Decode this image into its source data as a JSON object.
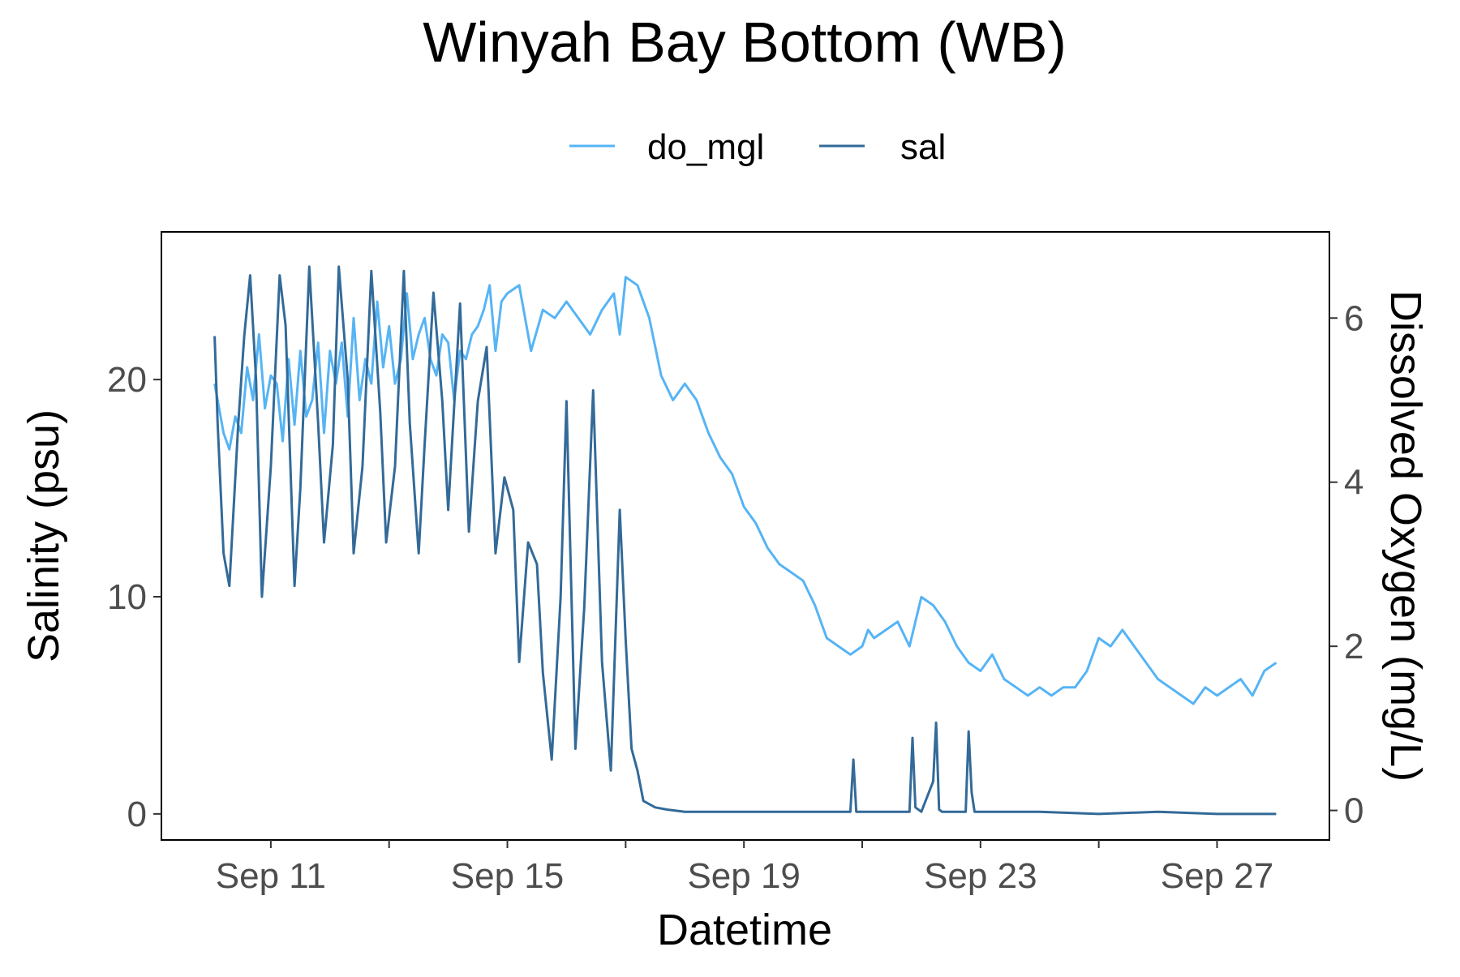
{
  "chart_data": {
    "type": "line",
    "title": "Winyah Bay Bottom (WB)",
    "xlabel": "Datetime",
    "ylabel_left": "Salinity (psu)",
    "ylabel_right": "Dissolved Oxygen (mg/L)",
    "x_ticks": [
      {
        "day": 11,
        "label": "Sep 11"
      },
      {
        "day": 15,
        "label": "Sep 15"
      },
      {
        "day": 19,
        "label": "Sep 19"
      },
      {
        "day": 23,
        "label": "Sep 23"
      },
      {
        "day": 27,
        "label": "Sep 27"
      }
    ],
    "x_minor_ticks": [
      13,
      17,
      21,
      25
    ],
    "xlim": [
      9.15,
      28.9
    ],
    "ylim_left": [
      -1.2,
      26.8
    ],
    "ylim_right": [
      -0.36,
      7.05
    ],
    "y_left_ticks": [
      0,
      10,
      20
    ],
    "y_right_ticks": [
      0,
      2,
      4,
      6
    ],
    "grid": false,
    "legend_position": "top",
    "series": [
      {
        "name": "do_mgl",
        "axis": "right",
        "color": "#56B4F5",
        "x": [
          10.05,
          10.1,
          10.2,
          10.3,
          10.4,
          10.5,
          10.6,
          10.7,
          10.8,
          10.9,
          11.0,
          11.1,
          11.2,
          11.3,
          11.4,
          11.5,
          11.6,
          11.7,
          11.8,
          11.9,
          12.0,
          12.1,
          12.2,
          12.3,
          12.4,
          12.5,
          12.6,
          12.7,
          12.8,
          12.9,
          13.0,
          13.1,
          13.2,
          13.3,
          13.4,
          13.5,
          13.6,
          13.7,
          13.8,
          13.9,
          14.0,
          14.1,
          14.2,
          14.3,
          14.4,
          14.5,
          14.6,
          14.7,
          14.8,
          14.9,
          15.0,
          15.2,
          15.4,
          15.6,
          15.8,
          16.0,
          16.2,
          16.4,
          16.6,
          16.8,
          16.9,
          17.0,
          17.2,
          17.4,
          17.6,
          17.8,
          18.0,
          18.2,
          18.4,
          18.6,
          18.8,
          19.0,
          19.2,
          19.4,
          19.6,
          19.8,
          20.0,
          20.2,
          20.4,
          20.6,
          20.8,
          21.0,
          21.1,
          21.2,
          21.4,
          21.6,
          21.8,
          22.0,
          22.2,
          22.4,
          22.6,
          22.8,
          23.0,
          23.2,
          23.4,
          23.6,
          23.8,
          24.0,
          24.2,
          24.4,
          24.6,
          24.8,
          25.0,
          25.2,
          25.4,
          25.6,
          25.8,
          26.0,
          26.2,
          26.4,
          26.6,
          26.8,
          27.0,
          27.2,
          27.4,
          27.6,
          27.8,
          28.0
        ],
        "values": [
          5.2,
          5.0,
          4.6,
          4.4,
          4.8,
          4.6,
          5.4,
          5.0,
          5.8,
          4.9,
          5.3,
          5.2,
          4.5,
          5.5,
          4.7,
          5.6,
          4.8,
          5.0,
          5.7,
          4.6,
          5.6,
          5.2,
          5.7,
          4.8,
          6.0,
          5.0,
          5.5,
          5.2,
          6.2,
          5.4,
          5.9,
          5.2,
          5.5,
          6.3,
          5.5,
          5.8,
          6.0,
          5.5,
          5.3,
          5.8,
          5.7,
          5.0,
          5.6,
          5.5,
          5.8,
          5.9,
          6.1,
          6.4,
          5.6,
          6.2,
          6.3,
          6.4,
          5.6,
          6.1,
          6.0,
          6.2,
          6.0,
          5.8,
          6.1,
          6.3,
          5.8,
          6.5,
          6.4,
          6.0,
          5.3,
          5.0,
          5.2,
          5.0,
          4.6,
          4.3,
          4.1,
          3.7,
          3.5,
          3.2,
          3.0,
          2.9,
          2.8,
          2.5,
          2.1,
          2.0,
          1.9,
          2.0,
          2.2,
          2.1,
          2.2,
          2.3,
          2.0,
          2.6,
          2.5,
          2.3,
          2.0,
          1.8,
          1.7,
          1.9,
          1.6,
          1.5,
          1.4,
          1.5,
          1.4,
          1.5,
          1.5,
          1.7,
          2.1,
          2.0,
          2.2,
          2.0,
          1.8,
          1.6,
          1.5,
          1.4,
          1.3,
          1.5,
          1.4,
          1.5,
          1.6,
          1.4,
          1.7,
          1.8
        ]
      },
      {
        "name": "sal",
        "axis": "left",
        "color": "#336A98",
        "x": [
          10.05,
          10.1,
          10.2,
          10.3,
          10.45,
          10.55,
          10.65,
          10.75,
          10.85,
          11.0,
          11.15,
          11.25,
          11.4,
          11.5,
          11.65,
          11.8,
          11.9,
          12.05,
          12.15,
          12.3,
          12.4,
          12.55,
          12.7,
          12.85,
          12.95,
          13.1,
          13.25,
          13.35,
          13.5,
          13.6,
          13.75,
          13.9,
          14.0,
          14.2,
          14.35,
          14.5,
          14.65,
          14.8,
          14.95,
          15.1,
          15.2,
          15.35,
          15.5,
          15.6,
          15.75,
          15.9,
          16.0,
          16.15,
          16.3,
          16.45,
          16.6,
          16.75,
          16.9,
          17.0,
          17.1,
          17.2,
          17.3,
          17.5,
          17.7,
          18.0,
          18.5,
          19.0,
          19.5,
          20.0,
          20.5,
          20.8,
          20.85,
          20.9,
          21.0,
          21.5,
          21.8,
          21.85,
          21.9,
          22.0,
          22.2,
          22.25,
          22.3,
          22.35,
          22.4,
          22.5,
          22.75,
          22.8,
          22.85,
          22.9,
          23.0,
          24.0,
          25.0,
          26.0,
          27.0,
          28.0
        ],
        "values": [
          22.0,
          18.0,
          12.0,
          10.5,
          18.0,
          22.0,
          24.8,
          20.0,
          10.0,
          16.0,
          24.8,
          22.5,
          10.5,
          15.0,
          25.2,
          18.0,
          12.5,
          17.0,
          25.2,
          20.0,
          12.0,
          16.0,
          25.0,
          18.5,
          12.5,
          16.0,
          25.0,
          18.0,
          12.0,
          17.0,
          24.0,
          19.0,
          14.0,
          23.5,
          13.0,
          19.0,
          21.5,
          12.0,
          15.5,
          14.0,
          7.0,
          12.5,
          11.5,
          6.5,
          2.5,
          10.0,
          19.0,
          3.0,
          9.5,
          19.5,
          7.0,
          2.0,
          14.0,
          8.0,
          3.0,
          2.0,
          0.6,
          0.3,
          0.2,
          0.1,
          0.1,
          0.1,
          0.1,
          0.1,
          0.1,
          0.1,
          2.5,
          0.1,
          0.1,
          0.1,
          0.1,
          3.5,
          0.3,
          0.1,
          1.5,
          4.2,
          0.2,
          0.1,
          0.1,
          0.1,
          0.1,
          3.8,
          1.0,
          0.1,
          0.1,
          0.1,
          0.0,
          0.1,
          0.0,
          0.0
        ]
      }
    ]
  }
}
